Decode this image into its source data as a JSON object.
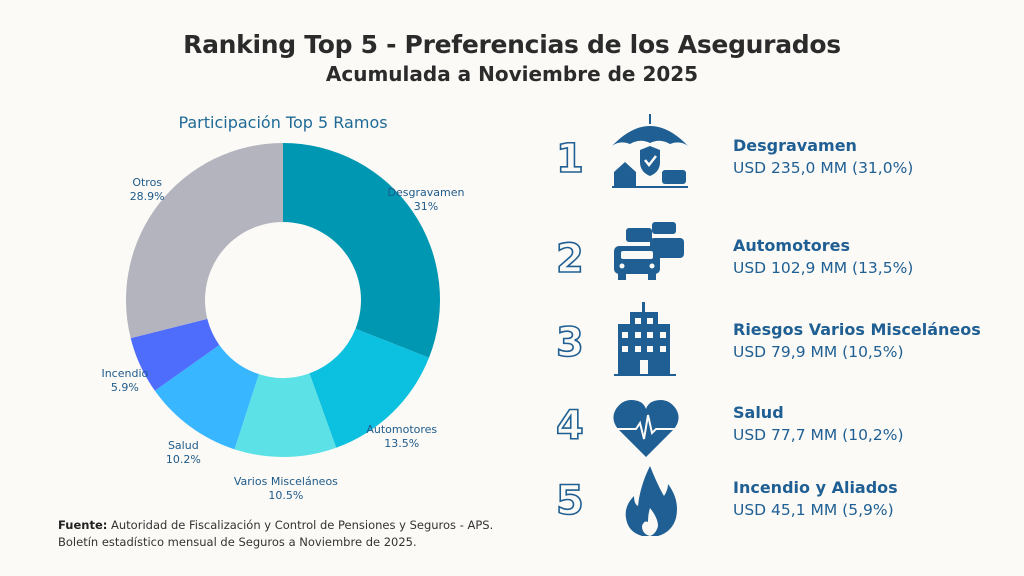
{
  "header": {
    "title": "Ranking Top 5 - Preferencias de los Asegurados",
    "subtitle": "Acumulada a Noviembre de 2025"
  },
  "chart_data": {
    "type": "pie",
    "variant": "donut",
    "title": "Participación Top 5 Ramos",
    "slices": [
      {
        "label": "Desgravamen",
        "value": 31,
        "value_label": "31%",
        "color": "#0097b2"
      },
      {
        "label": "Automotores",
        "value": 13.5,
        "value_label": "13.5%",
        "color": "#0cc0df"
      },
      {
        "label": "Varios Misceláneos",
        "value": 10.5,
        "value_label": "10.5%",
        "color": "#5ce1e6"
      },
      {
        "label": "Salud",
        "value": 10.2,
        "value_label": "10.2%",
        "color": "#38b6ff"
      },
      {
        "label": "Incendio",
        "value": 5.9,
        "value_label": "5.9%",
        "color": "#4f6dfd"
      },
      {
        "label": "Otros",
        "value": 28.9,
        "value_label": "28.9%",
        "color": "#b4b4be"
      }
    ]
  },
  "ranking": [
    {
      "rank": "1",
      "name": "Desgravamen",
      "value": "USD 235,0 MM (31,0%)",
      "icon": "umbrella-shield-icon"
    },
    {
      "rank": "2",
      "name": "Automotores",
      "value": "USD 102,9 MM (13,5%)",
      "icon": "cars-icon"
    },
    {
      "rank": "3",
      "name": "Riesgos Varios Misceláneos",
      "value": "USD 79,9 MM (10,5%)",
      "icon": "building-icon"
    },
    {
      "rank": "4",
      "name": "Salud",
      "value": "USD 77,7 MM (10,2%)",
      "icon": "heart-pulse-icon"
    },
    {
      "rank": "5",
      "name": "Incendio y Aliados",
      "value": "USD 45,1 MM (5,9%)",
      "icon": "flame-icon"
    }
  ],
  "source": {
    "label": "Fuente:",
    "line1": "Autoridad de Fiscalización y Control de Pensiones y Seguros - APS.",
    "line2": "Boletín estadístico mensual de Seguros a Noviembre de 2025."
  },
  "colors": {
    "text_blue": "#1f5f93",
    "background": "#fbfaf6"
  }
}
